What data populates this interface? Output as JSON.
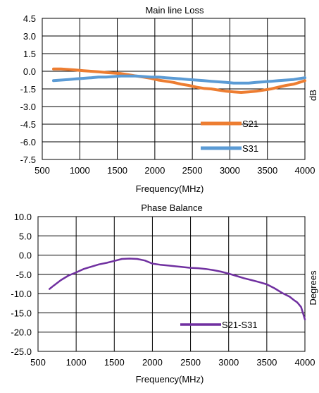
{
  "chart_data": [
    {
      "type": "line",
      "title": "Main line Loss",
      "xlabel": "Frequency(MHz)",
      "ylabel": "dB",
      "xlim": [
        500,
        4000
      ],
      "ylim": [
        -7.5,
        4.5
      ],
      "xticks": [
        "500",
        "1000",
        "1500",
        "2000",
        "2500",
        "3000",
        "3500",
        "4000"
      ],
      "yticks": [
        "4.5",
        "3.0",
        "1.5",
        "0.0",
        "-1.5",
        "-3.0",
        "-4.5",
        "-6.0",
        "-7.5"
      ],
      "grid": true,
      "legend_position": "bottom-right",
      "series": [
        {
          "name": "S21",
          "color": "#ED7D31",
          "x": [
            650,
            750,
            850,
            950,
            1050,
            1150,
            1250,
            1350,
            1450,
            1550,
            1650,
            1750,
            1850,
            1950,
            2050,
            2150,
            2250,
            2350,
            2450,
            2550,
            2650,
            2750,
            2850,
            2950,
            3050,
            3150,
            3250,
            3350,
            3450,
            3550,
            3650,
            3750,
            3850,
            3950,
            4000
          ],
          "y": [
            0.2,
            0.2,
            0.15,
            0.1,
            0.05,
            0.0,
            -0.05,
            -0.1,
            -0.15,
            -0.2,
            -0.3,
            -0.4,
            -0.5,
            -0.6,
            -0.75,
            -0.85,
            -0.95,
            -1.1,
            -1.2,
            -1.35,
            -1.45,
            -1.5,
            -1.6,
            -1.7,
            -1.75,
            -1.8,
            -1.75,
            -1.7,
            -1.6,
            -1.5,
            -1.35,
            -1.2,
            -1.1,
            -0.9,
            -0.8
          ]
        },
        {
          "name": "S31",
          "color": "#5B9BD5",
          "x": [
            650,
            750,
            850,
            950,
            1050,
            1150,
            1250,
            1350,
            1450,
            1550,
            1650,
            1750,
            1850,
            1950,
            2050,
            2150,
            2250,
            2350,
            2450,
            2550,
            2650,
            2750,
            2850,
            2950,
            3050,
            3150,
            3250,
            3350,
            3450,
            3550,
            3650,
            3750,
            3850,
            3950,
            4000
          ],
          "y": [
            -0.8,
            -0.75,
            -0.7,
            -0.65,
            -0.6,
            -0.55,
            -0.5,
            -0.5,
            -0.45,
            -0.4,
            -0.4,
            -0.4,
            -0.45,
            -0.5,
            -0.5,
            -0.55,
            -0.6,
            -0.65,
            -0.7,
            -0.75,
            -0.8,
            -0.85,
            -0.9,
            -0.95,
            -1.0,
            -1.0,
            -1.0,
            -0.95,
            -0.9,
            -0.85,
            -0.8,
            -0.75,
            -0.7,
            -0.6,
            -0.55
          ]
        }
      ]
    },
    {
      "type": "line",
      "title": "Phase Balance",
      "xlabel": "Frequency(MHz)",
      "ylabel": "Degrees",
      "xlim": [
        500,
        4000
      ],
      "ylim": [
        -25,
        10
      ],
      "xticks": [
        "500",
        "1000",
        "1500",
        "2000",
        "2500",
        "3000",
        "3500",
        "4000"
      ],
      "yticks": [
        "10.0",
        "5.0",
        "0.0",
        "-5.0",
        "-10.0",
        "-15.0",
        "-20.0",
        "-25.0"
      ],
      "grid": true,
      "legend_position": "bottom-right",
      "series": [
        {
          "name": "S21-S31",
          "color": "#7030A0",
          "x": [
            650,
            700,
            800,
            900,
            1000,
            1100,
            1200,
            1300,
            1400,
            1500,
            1600,
            1700,
            1800,
            1900,
            2000,
            2100,
            2200,
            2300,
            2400,
            2500,
            2600,
            2700,
            2800,
            2900,
            3000,
            3100,
            3200,
            3300,
            3400,
            3500,
            3600,
            3700,
            3800,
            3850,
            3900,
            3950,
            4000
          ],
          "y": [
            -8.8,
            -8.0,
            -6.5,
            -5.3,
            -4.5,
            -3.6,
            -3.0,
            -2.4,
            -2.0,
            -1.5,
            -1.0,
            -0.9,
            -1.0,
            -1.4,
            -2.2,
            -2.5,
            -2.7,
            -2.9,
            -3.1,
            -3.3,
            -3.4,
            -3.6,
            -3.9,
            -4.3,
            -4.8,
            -5.4,
            -6.0,
            -6.5,
            -7.0,
            -7.6,
            -8.6,
            -9.8,
            -10.8,
            -11.6,
            -12.3,
            -13.5,
            -16.7
          ]
        }
      ]
    }
  ]
}
